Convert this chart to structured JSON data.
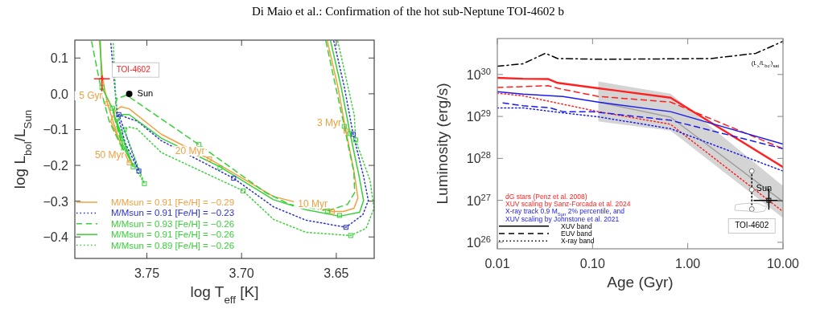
{
  "chart_data": [
    {
      "type": "line",
      "title": "Di Maio et al.: Confirmation of the hot sub-Neptune TOI-4602 b",
      "xlabel": "log T$_{eff}$ [K]",
      "ylabel": "log L$_{bol}$/L$_{Sun}$",
      "xlim": [
        3.788,
        3.63
      ],
      "ylim": [
        -0.46,
        0.15
      ],
      "xticks": [
        3.75,
        {
          "value": 3.7,
          "label": "3.70"
        },
        3.65
      ],
      "yticks": [
        {
          "value": -0.4,
          "label": "−0.4"
        },
        {
          "value": -0.3,
          "label": "−0.3"
        },
        {
          "value": -0.2,
          "label": "−0.2"
        },
        {
          "value": -0.1,
          "label": "−0.1"
        },
        {
          "value": 0,
          "label": "0.0"
        },
        0.1
      ],
      "legend": "bottom left",
      "annotations": [
        {
          "text": "5 Gyr",
          "x": 3.7708,
          "y": -0.027
        },
        {
          "text": "50 Myr",
          "x": 3.7593,
          "y": -0.193
        },
        {
          "text": "20 Myr",
          "x": 3.7169,
          "y": -0.182
        },
        {
          "text": "10 Myr",
          "x": 3.6521,
          "y": -0.329
        },
        {
          "text": "3 Myr",
          "x": 3.6449,
          "y": -0.104
        }
      ],
      "series": [
        {
          "name": "M/Msun = 0.91 [Fe/H] = −0.29",
          "color": "#f0a040",
          "line_style": "solid",
          "x": [
            3.6547,
            3.6492,
            3.6449,
            3.6407,
            3.6386,
            3.6407,
            3.6462,
            3.6521,
            3.6831,
            3.7169,
            3.7424,
            3.7593,
            3.7636,
            3.7665,
            3.7691,
            3.7593,
            3.7648,
            3.7708,
            3.7733,
            3.775
          ],
          "values": [
            0.147,
            0.02,
            -0.104,
            -0.216,
            -0.291,
            -0.32,
            -0.329,
            -0.329,
            -0.287,
            -0.182,
            -0.113,
            -0.042,
            -0.036,
            -0.047,
            -0.076,
            -0.193,
            -0.127,
            -0.027,
            0.042,
            0.147
          ]
        },
        {
          "name": "M/Msun = 0.91 [Fe/H] = −0.23",
          "color": "#2830d8",
          "line_style": "dotted",
          "x": [
            3.6513,
            3.6458,
            3.6411,
            3.6356,
            3.6331,
            3.636,
            3.6449,
            3.6661,
            3.6831,
            3.7042,
            3.7424,
            3.7551,
            3.7593,
            3.7648,
            3.7542,
            3.7614,
            3.7657,
            3.7691
          ],
          "values": [
            0.147,
            0.02,
            -0.113,
            -0.231,
            -0.298,
            -0.338,
            -0.373,
            -0.353,
            -0.316,
            -0.236,
            -0.131,
            -0.076,
            -0.069,
            -0.058,
            -0.216,
            -0.138,
            -0.053,
            0.147
          ]
        },
        {
          "name": "M/Msun = 0.93 [Fe/H] = −0.26",
          "color": "#38d038",
          "line_style": "dashed",
          "x": [
            3.6555,
            3.6458,
            3.6407,
            3.6403,
            3.6441,
            3.6547,
            3.6746,
            3.6873,
            3.7225,
            3.7606,
            3.7657,
            3.7678,
            3.7623,
            3.7699,
            3.7733,
            3.7792
          ],
          "values": [
            0.147,
            -0.091,
            -0.22,
            -0.276,
            -0.309,
            -0.327,
            -0.309,
            -0.276,
            -0.142,
            -0.004,
            -0.013,
            -0.053,
            -0.16,
            -0.076,
            -0.009,
            0.147
          ]
        },
        {
          "name": "M/Msun = 0.91 [Fe/H] = −0.26",
          "color": "#38d038",
          "line_style": "solid",
          "x": [
            3.653,
            3.6475,
            3.6428,
            3.6381,
            3.6356,
            3.6377,
            3.6483,
            3.6661,
            3.6831,
            3.7114,
            3.7424,
            3.7593,
            3.7636,
            3.7657,
            3.7572,
            3.7627,
            3.7682,
            3.7737,
            3.7746
          ],
          "values": [
            0.147,
            0.02,
            -0.109,
            -0.227,
            -0.298,
            -0.331,
            -0.342,
            -0.324,
            -0.296,
            -0.204,
            -0.124,
            -0.058,
            -0.058,
            -0.08,
            -0.204,
            -0.142,
            -0.04,
            0.018,
            0.147
          ]
        },
        {
          "name": "M/Msun = 0.89 [Fe/H] = −0.26",
          "color": "#38d038",
          "line_style": "dotted",
          "x": [
            3.6492,
            3.6405,
            3.6398,
            3.6322,
            3.6301,
            3.6343,
            3.6424,
            3.6661,
            3.6831,
            3.6992,
            3.7424,
            3.7551,
            3.7593,
            3.7619,
            3.7513,
            3.7593,
            3.7657,
            3.7678
          ],
          "values": [
            0.147,
            -0.06,
            -0.129,
            -0.242,
            -0.32,
            -0.376,
            -0.396,
            -0.387,
            -0.351,
            -0.271,
            -0.164,
            -0.098,
            -0.093,
            -0.1,
            -0.251,
            -0.176,
            -0.087,
            0.147
          ]
        },
        {
          "type": "scatter",
          "marker": "square",
          "color": "#f0a040",
          "x": [
            3.6449,
            3.6521,
            3.7169,
            3.7593,
            3.7708
          ],
          "values": [
            -0.104,
            -0.329,
            -0.182,
            -0.193,
            -0.027
          ]
        },
        {
          "type": "scatter",
          "marker": "square",
          "color": "#2830d8",
          "x": [
            3.6411,
            3.6449,
            3.7042,
            3.7648,
            3.7542
          ],
          "values": [
            -0.113,
            -0.373,
            -0.236,
            -0.058,
            -0.216
          ]
        },
        {
          "type": "scatter",
          "marker": "square",
          "color": "#38d038",
          "x": [
            3.6428,
            3.6398,
            3.6458,
            3.6547,
            3.6483,
            3.6424,
            3.7225,
            3.7114,
            3.6992,
            3.7682,
            3.7737,
            3.7619,
            3.7623,
            3.7572,
            3.7513
          ],
          "values": [
            -0.111,
            -0.129,
            -0.091,
            -0.327,
            -0.34,
            -0.396,
            -0.142,
            -0.207,
            -0.271,
            -0.04,
            0.018,
            -0.1,
            -0.16,
            -0.204,
            -0.251
          ]
        },
        {
          "type": "scatter",
          "name": "Sun",
          "marker": "circle",
          "color": "#000000",
          "x": [
            3.7593
          ],
          "values": [
            0
          ]
        },
        {
          "type": "scatter",
          "name": "TOI-4602",
          "marker": "cross",
          "color": "#ff2020",
          "x": [
            3.7737
          ],
          "values": [
            0.042
          ],
          "errors": [
            [
              -0.013,
              0.051
            ]
          ],
          "xerrors": [
            [
              3.7779,
              3.7695
            ]
          ]
        }
      ]
    },
    {
      "type": "line",
      "xlabel": "Age (Gyr)",
      "ylabel": "Luminosity (erg/s)",
      "log": "xy",
      "xlim": [
        0.01,
        10
      ],
      "ylim": [
        7e+25,
        7.2e+30
      ],
      "xticks": [
        0.01,
        {
          "value": 0.1,
          "label": "0.10"
        },
        {
          "value": 1,
          "label": "1.00"
        },
        {
          "value": 10,
          "label": "10.00"
        }
      ],
      "yticks": [
        {
          "value": 1e+26,
          "label": "10$^{26}$"
        },
        {
          "value": 1e+27,
          "label": "10$^{27}$"
        },
        {
          "value": 1e+28,
          "label": "10$^{28}$"
        },
        {
          "value": 1e+29,
          "label": "10$^{29}$"
        },
        {
          "value": 1e+30,
          "label": "10$^{30}$"
        }
      ],
      "annotations": [
        "dG stars (Penz et al. 2008)",
        "XUV scaling by Sanz-Forcada et al. 2024",
        "X-ray track 0.9 M$_{Sun}$ 2% percentile, and",
        "XUV scaling by Johnstone et al. 2021",
        "XUV band",
        "EUV band",
        "X-ray band",
        {
          "text": "(L$_{x}$/L$_{bol}$)$_{sat}$",
          "x": 6.5,
          "y": 3.4e+30
        }
      ],
      "series": [
        {
          "color": "#a0a0a0",
          "line_style": "solid",
          "x": [
            0.115,
            0.66,
            10
          ],
          "values": [
            2.2e+29,
            9.6e+28,
            9.3e+26
          ],
          "lower": [
            7.6e+28,
            4.6e+28,
            3.8e+26
          ],
          "upper": [
            6.8e+29,
            3.5e+29,
            2.2e+27
          ]
        },
        {
          "color": "#ff2020",
          "line_style": "solid",
          "x": [
            0.01,
            0.0186,
            0.034,
            0.043,
            0.115,
            0.66,
            10
          ],
          "values": [
            8.3e+29,
            7.9e+29,
            7.8e+29,
            6.3e+29,
            4.7e+29,
            2.8e+29,
            6.2e+27
          ]
        },
        {
          "color": "#ff2020",
          "line_style": "dashed",
          "x": [
            0.01,
            0.034,
            0.043,
            0.115,
            0.66,
            10
          ],
          "values": [
            4.9e+29,
            5.4e+29,
            4.7e+29,
            3e+29,
            2.2e+29,
            1.7e+28
          ]
        },
        {
          "color": "#ff2020",
          "line_style": "dotted",
          "x": [
            0.01,
            0.0186,
            0.115,
            0.66,
            10
          ],
          "values": [
            3.6e+29,
            3.1e+29,
            1.3e+29,
            6.5e+28,
            5.4e+26
          ]
        },
        {
          "color": "#1c1cf0",
          "line_style": "solid",
          "x": [
            0.01,
            0.0186,
            0.049,
            0.115,
            0.66,
            10
          ],
          "values": [
            3.9e+29,
            3.4e+29,
            3e+29,
            2.2e+29,
            1.3e+29,
            2.2e+28
          ]
        },
        {
          "color": "#1c1cf0",
          "line_style": "dashed",
          "x": [
            0.0115,
            0.0186,
            0.036,
            0.049,
            0.1,
            0.66,
            10
          ],
          "values": [
            2.1e+29,
            1.8e+29,
            1.6e+29,
            1.3e+29,
            1.3e+29,
            8.1e+28,
            1.7e+28
          ]
        },
        {
          "color": "#1c1cf0",
          "line_style": "dotted",
          "x": [
            0.01,
            0.0186,
            0.043,
            0.115,
            0.66,
            10
          ],
          "values": [
            1.6e+29,
            1.6e+29,
            1.26e+29,
            9.8e+28,
            5.1e+28,
            5e+27
          ]
        },
        {
          "color": "#000000",
          "line_style": "dashdot",
          "x": [
            0.01,
            0.0186,
            0.032,
            0.043,
            0.13,
            1.74,
            5.2,
            10
          ],
          "values": [
            1.57e+30,
            1.8e+30,
            3.2e+30,
            2.4e+30,
            2.3e+30,
            2.4e+30,
            3.2e+30,
            6.2e+30
          ]
        },
        {
          "name": "TOI-4602",
          "color": "#000000",
          "line_style": "dotted",
          "marker": "circle",
          "x": [
            4.7,
            4.7,
            4.7
          ],
          "values": [
            5e+27,
            1.8e+27,
            6.2e+26
          ]
        },
        {
          "type": "scatter",
          "name": "Sun",
          "marker": "square",
          "color": "#000000",
          "x": [
            7.1
          ],
          "values": [
            1e+27
          ],
          "xerrors": [
            [
              4.9,
              10
            ]
          ],
          "errors": [
            [
              6e+26,
              1.9e+27
            ]
          ]
        }
      ]
    }
  ]
}
